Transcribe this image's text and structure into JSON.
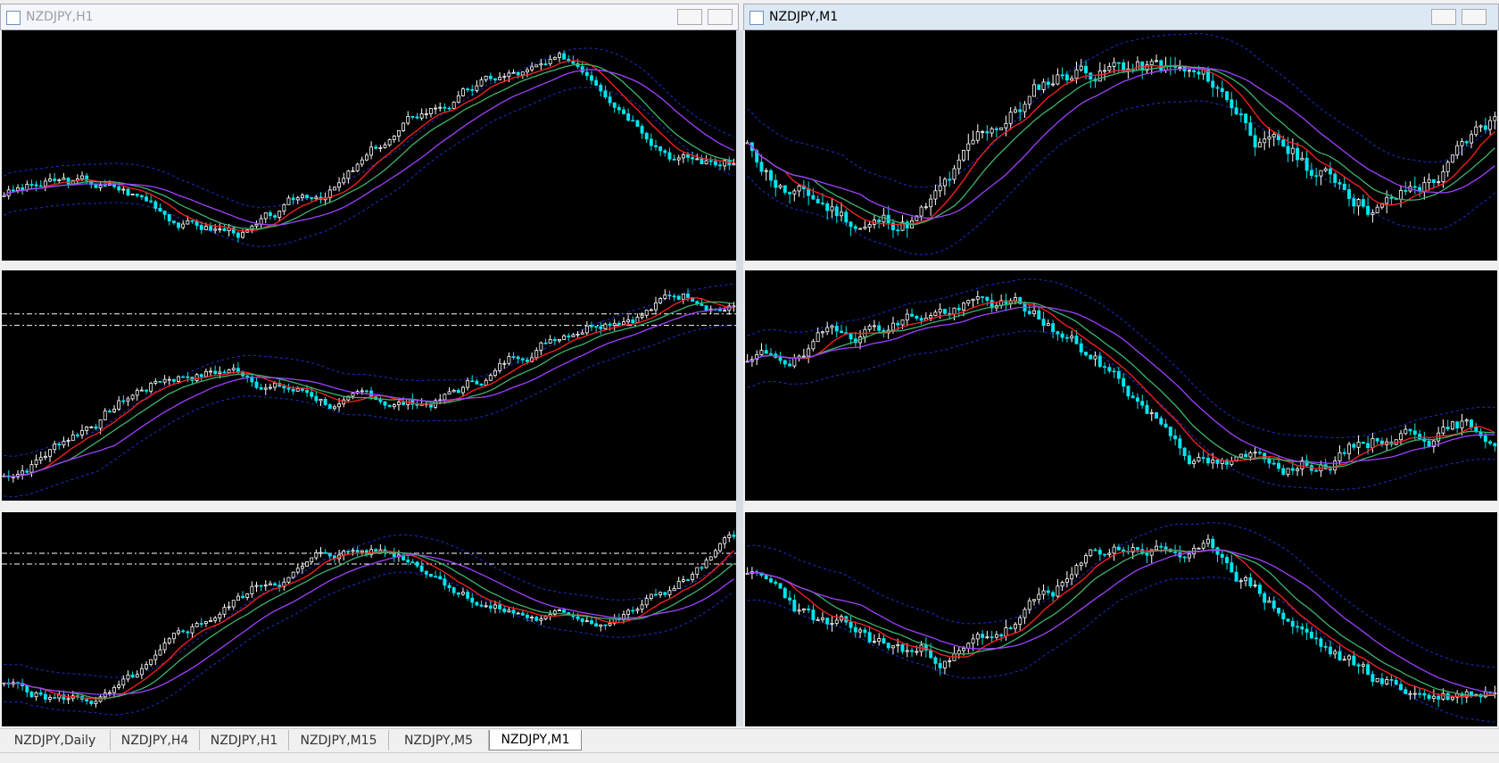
{
  "windows": [
    {
      "title": "NZDJPY,H1"
    },
    {
      "title": "NZDJPY,M1"
    }
  ],
  "tabs": [
    "NZDJPY,Daily",
    "NZDJPY,H4",
    "NZDJPY,H1",
    "NZDJPY,M15",
    "NZDJPY,M5",
    "NZDJPY,M1"
  ],
  "active_tab": 5
}
